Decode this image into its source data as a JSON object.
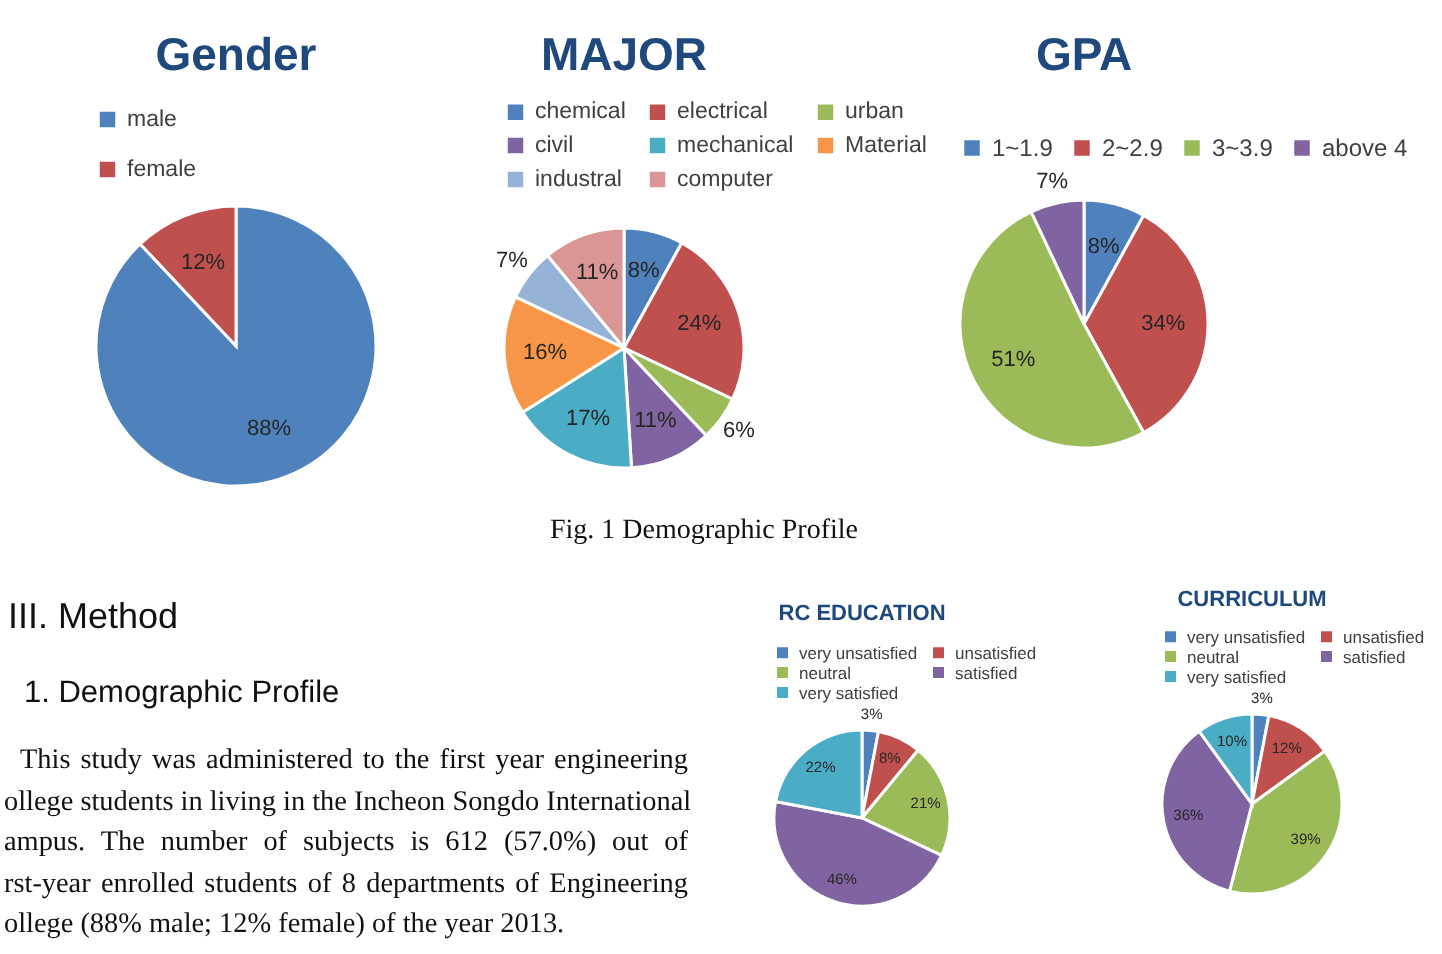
{
  "chart_data": [
    {
      "type": "pie",
      "title": "Gender",
      "categories": [
        "male",
        "female"
      ],
      "values": [
        88,
        12
      ],
      "colors": [
        "#4f81bd",
        "#c0504d"
      ],
      "value_labels": [
        "88%",
        "12%"
      ],
      "legend": "top"
    },
    {
      "type": "pie",
      "title": "MAJOR",
      "categories": [
        "chemical",
        "electrical",
        "urban",
        "civil",
        "mechanical",
        "Material",
        "industral",
        "computer"
      ],
      "values": [
        8,
        24,
        6,
        11,
        17,
        16,
        7,
        11
      ],
      "colors": [
        "#4f81bd",
        "#c0504d",
        "#9bbb59",
        "#8064a2",
        "#4bacc6",
        "#f79646",
        "#95b3d7",
        "#d99694"
      ],
      "value_labels": [
        "8%",
        "24%",
        "6%",
        "11%",
        "17%",
        "16%",
        "7%",
        "11%"
      ],
      "legend": "top",
      "annotations": [
        "Fig. 1 Demographic Profile"
      ]
    },
    {
      "type": "pie",
      "title": "GPA",
      "categories": [
        "1~1.9",
        "2~2.9",
        "3~3.9",
        "above 4"
      ],
      "values": [
        8,
        34,
        51,
        7
      ],
      "colors": [
        "#4f81bd",
        "#c0504d",
        "#9bbb59",
        "#8064a2"
      ],
      "value_labels": [
        "8%",
        "34%",
        "51%",
        "7%"
      ],
      "legend": "top"
    },
    {
      "type": "other",
      "title": "III. Method",
      "subtitle": "1. Demographic Profile",
      "annotations": [
        "This study was administered to the first year engineering",
        "ollege students in living in the Incheon Songdo International",
        "ampus. The number of subjects is 612 (57.0%) out of",
        "rst-year enrolled students of 8 departments of Engineering",
        "ollege (88% male; 12% female) of the year 2013."
      ]
    },
    {
      "type": "pie",
      "title": "RC EDUCATION",
      "categories": [
        "very unsatisfied",
        "unsatisfied",
        "neutral",
        "satisfied",
        "very satisfied"
      ],
      "values": [
        3,
        8,
        21,
        46,
        22
      ],
      "colors": [
        "#4f81bd",
        "#c0504d",
        "#9bbb59",
        "#8064a2",
        "#4bacc6"
      ],
      "value_labels": [
        "3%",
        "8%",
        "21%",
        "46%",
        "22%"
      ],
      "legend": "top"
    },
    {
      "type": "pie",
      "title": "CURRICULUM",
      "categories": [
        "very unsatisfied",
        "unsatisfied",
        "neutral",
        "satisfied",
        "very satisfied"
      ],
      "values": [
        3,
        12,
        39,
        36,
        10
      ],
      "colors": [
        "#4f81bd",
        "#c0504d",
        "#9bbb59",
        "#8064a2",
        "#4bacc6"
      ],
      "value_labels": [
        "3%",
        "12%",
        "39%",
        "36%",
        "10%"
      ],
      "legend": "top"
    }
  ]
}
